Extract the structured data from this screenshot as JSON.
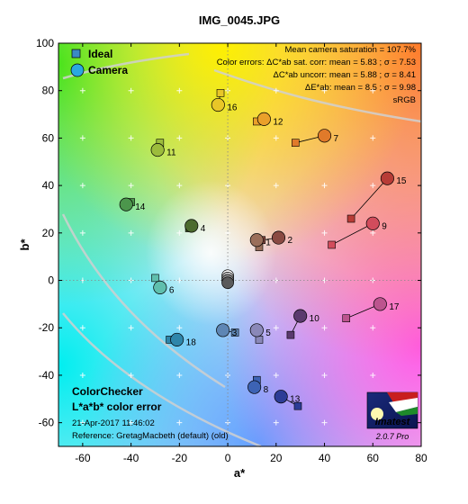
{
  "chart_data": {
    "type": "scatter",
    "title": "IMG_0045.JPG",
    "xlabel": "a*",
    "ylabel": "b*",
    "xlim": [
      -70,
      80
    ],
    "ylim": [
      -70,
      100
    ],
    "xticks": [
      -60,
      -40,
      -20,
      0,
      20,
      40,
      60,
      80
    ],
    "yticks": [
      -60,
      -40,
      -20,
      0,
      20,
      40,
      60,
      80,
      100
    ],
    "grid": true,
    "legend": {
      "placement": "top-left",
      "entries": [
        "Ideal",
        "Camera"
      ]
    },
    "stats": [
      "Mean camera saturation = 107.7%",
      "Color errors:  ΔC*ab sat. corr:  mean = 5.83 ;  σ = 7.53",
      "ΔC*ab uncorr:  mean = 5.88 ;  σ = 8.41",
      "ΔE*ab:  mean = 8.5 ;  σ = 9.98",
      "sRGB"
    ],
    "annotations": {
      "title1": "ColorChecker",
      "title2": "L*a*b* color error",
      "date": "21-Apr-2017 11:46:02",
      "reference": "Reference: GretagMacbeth (default) (old)",
      "logo": "Imatest",
      "version": "2.0.7  Pro"
    },
    "patches": [
      {
        "label": "1",
        "ideal": [
          13,
          14
        ],
        "camera": [
          12,
          17
        ],
        "color": "#9a6e5a"
      },
      {
        "label": "2",
        "ideal": [
          14,
          17
        ],
        "camera": [
          21,
          18
        ],
        "color": "#8a4a42"
      },
      {
        "label": "3",
        "ideal": [
          3,
          -22
        ],
        "camera": [
          -2,
          -21
        ],
        "color": "#5e86b4"
      },
      {
        "label": "4",
        "ideal": [
          -16,
          22
        ],
        "camera": [
          -15,
          23
        ],
        "color": "#4b6b2e"
      },
      {
        "label": "5",
        "ideal": [
          13,
          -25
        ],
        "camera": [
          12,
          -21
        ],
        "color": "#8a88b8"
      },
      {
        "label": "6",
        "ideal": [
          -30,
          1
        ],
        "camera": [
          -28,
          -3
        ],
        "color": "#5fbfad"
      },
      {
        "label": "7",
        "ideal": [
          28,
          58
        ],
        "camera": [
          40,
          61
        ],
        "color": "#e07a2a"
      },
      {
        "label": "8",
        "ideal": [
          12,
          -42
        ],
        "camera": [
          11,
          -45
        ],
        "color": "#3d63b4"
      },
      {
        "label": "9",
        "ideal": [
          43,
          15
        ],
        "camera": [
          60,
          24
        ],
        "color": "#d24c5c"
      },
      {
        "label": "10",
        "ideal": [
          26,
          -23
        ],
        "camera": [
          30,
          -15
        ],
        "color": "#5a3a6e"
      },
      {
        "label": "11",
        "ideal": [
          -28,
          58
        ],
        "camera": [
          -29,
          55
        ],
        "color": "#9cbc3c"
      },
      {
        "label": "12",
        "ideal": [
          12,
          67
        ],
        "camera": [
          15,
          68
        ],
        "color": "#eaa02a"
      },
      {
        "label": "13",
        "ideal": [
          29,
          -53
        ],
        "camera": [
          22,
          -49
        ],
        "color": "#2c3c96"
      },
      {
        "label": "14",
        "ideal": [
          -40,
          33
        ],
        "camera": [
          -42,
          32
        ],
        "color": "#4c964c"
      },
      {
        "label": "15",
        "ideal": [
          51,
          26
        ],
        "camera": [
          66,
          43
        ],
        "color": "#b83c36"
      },
      {
        "label": "16",
        "ideal": [
          -3,
          79
        ],
        "camera": [
          -4,
          74
        ],
        "color": "#e8c628"
      },
      {
        "label": "17",
        "ideal": [
          49,
          -16
        ],
        "camera": [
          63,
          -10
        ],
        "color": "#bc548e"
      },
      {
        "label": "18",
        "ideal": [
          -24,
          -25
        ],
        "camera": [
          -21,
          -25
        ],
        "color": "#2e86aa"
      }
    ],
    "neutrals": [
      [
        0,
        2
      ],
      [
        0,
        1
      ],
      [
        0,
        0
      ],
      [
        0,
        -1
      ]
    ]
  }
}
